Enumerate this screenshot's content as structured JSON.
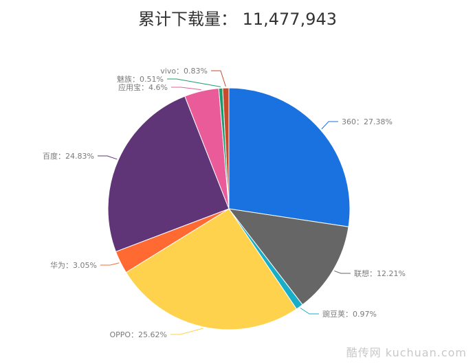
{
  "chart_data": {
    "type": "pie",
    "title": "累计下载量： 11,477,943",
    "slices": [
      {
        "label": "360：27.38%",
        "name": "360",
        "value": 27.38,
        "color": "#1a71e0"
      },
      {
        "label": "联想：12.21%",
        "name": "联想",
        "value": 12.21,
        "color": "#666666"
      },
      {
        "label": "豌豆荚：0.97%",
        "name": "豌豆荚",
        "value": 0.97,
        "color": "#1aadc8"
      },
      {
        "label": "OPPO：25.62%",
        "name": "OPPO",
        "value": 25.62,
        "color": "#ffd24d"
      },
      {
        "label": "华为：3.05%",
        "name": "华为",
        "value": 3.05,
        "color": "#ff6a33"
      },
      {
        "label": "百度：24.83%",
        "name": "百度",
        "value": 24.83,
        "color": "#603578"
      },
      {
        "label": "应用宝：4.6%",
        "name": "应用宝",
        "value": 4.6,
        "color": "#ea5b9a"
      },
      {
        "label": "魅族：0.51%",
        "name": "魅族",
        "value": 0.51,
        "color": "#1a9d6e"
      },
      {
        "label": "vivo：0.83%",
        "name": "vivo",
        "value": 0.83,
        "color": "#c94a2a"
      }
    ]
  },
  "watermark": "酷传网 kuchuan.com"
}
